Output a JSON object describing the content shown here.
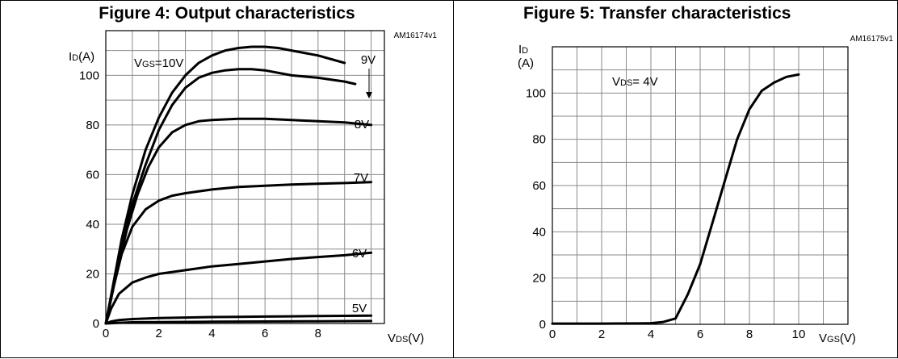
{
  "chart_data": [
    {
      "type": "line",
      "title": "Figure 4: Output characteristics",
      "code": "AM16174v1",
      "condition_label": "VGS=10V",
      "xlabel": "VDS(V)",
      "ylabel": "ID(A)",
      "xlim": [
        0,
        10.5
      ],
      "ylim": [
        0,
        118
      ],
      "xticks": [
        0,
        2,
        4,
        6,
        8
      ],
      "yticks": [
        0,
        20,
        40,
        60,
        80,
        100
      ],
      "grid": true,
      "series": [
        {
          "name": "",
          "x": [
            0,
            0.3,
            0.6,
            1,
            1.5,
            2,
            2.5,
            3,
            3.5,
            4,
            4.5,
            5,
            5.5,
            6,
            6.5,
            7,
            8,
            9
          ],
          "y": [
            0,
            17,
            34,
            52,
            70,
            83,
            93,
            100,
            105,
            108,
            110,
            111,
            111.5,
            111.5,
            111,
            110,
            108,
            105
          ]
        },
        {
          "name": "9V",
          "x": [
            0,
            0.3,
            0.6,
            1,
            1.5,
            2,
            2.5,
            3,
            3.5,
            4,
            4.5,
            5,
            5.5,
            6,
            7,
            8,
            9,
            9.4
          ],
          "y": [
            0,
            16,
            32,
            48,
            64,
            78,
            88,
            95,
            99,
            101,
            102,
            102.5,
            102.5,
            102,
            100,
            99,
            97.5,
            96.5
          ]
        },
        {
          "name": "8V",
          "x": [
            0,
            0.4,
            0.8,
            1.2,
            1.6,
            2,
            2.5,
            3,
            3.5,
            4,
            5,
            6,
            7,
            8,
            9,
            10
          ],
          "y": [
            0,
            20,
            38,
            52,
            63,
            71,
            77,
            80,
            81.5,
            82,
            82.5,
            82.5,
            82,
            81.5,
            81,
            80
          ]
        },
        {
          "name": "7V",
          "x": [
            0,
            0.3,
            0.6,
            1,
            1.5,
            2,
            2.5,
            3,
            4,
            5,
            6,
            7,
            8,
            9,
            10
          ],
          "y": [
            0,
            15,
            28,
            39,
            46,
            49.5,
            51.5,
            52.5,
            54,
            55,
            55.5,
            56,
            56.3,
            56.6,
            57
          ]
        },
        {
          "name": "6V",
          "x": [
            0,
            0.2,
            0.5,
            1,
            1.5,
            2,
            3,
            4,
            5,
            6,
            7,
            8,
            9,
            10
          ],
          "y": [
            0,
            6,
            12,
            16.5,
            18.5,
            20,
            21.5,
            23,
            24,
            25,
            26,
            26.8,
            27.5,
            28.5
          ]
        },
        {
          "name": "5V",
          "x": [
            0,
            0.2,
            0.5,
            1,
            2,
            3,
            4,
            5,
            6,
            7,
            8,
            9,
            10
          ],
          "y": [
            0,
            0.8,
            1.4,
            1.8,
            2.2,
            2.4,
            2.6,
            2.7,
            2.8,
            2.9,
            3.0,
            3.1,
            3.2
          ]
        },
        {
          "name": "",
          "x": [
            0,
            0.5,
            1,
            2,
            4,
            6,
            8,
            10
          ],
          "y": [
            0,
            0.3,
            0.5,
            0.6,
            0.7,
            0.8,
            0.9,
            1.0
          ]
        }
      ]
    },
    {
      "type": "line",
      "title": "Figure 5: Transfer characteristics",
      "code": "AM16175v1",
      "condition_label": "VDS= 4V",
      "xlabel": "VGS(V)",
      "ylabel": "ID",
      "ylabel_unit": "(A)",
      "xlim": [
        0,
        12
      ],
      "ylim": [
        0,
        120
      ],
      "xticks": [
        0,
        2,
        4,
        6,
        8,
        10
      ],
      "yticks": [
        0,
        20,
        40,
        60,
        80,
        100
      ],
      "grid": true,
      "series": [
        {
          "name": "",
          "x": [
            0,
            2,
            3.5,
            4,
            4.5,
            5,
            5.5,
            6,
            6.5,
            7,
            7.5,
            8,
            8.5,
            9,
            9.5,
            10
          ],
          "y": [
            0.3,
            0.3,
            0.4,
            0.5,
            1,
            2.5,
            13,
            26,
            44,
            62,
            80,
            93,
            101,
            104.5,
            107,
            108
          ]
        }
      ]
    }
  ]
}
